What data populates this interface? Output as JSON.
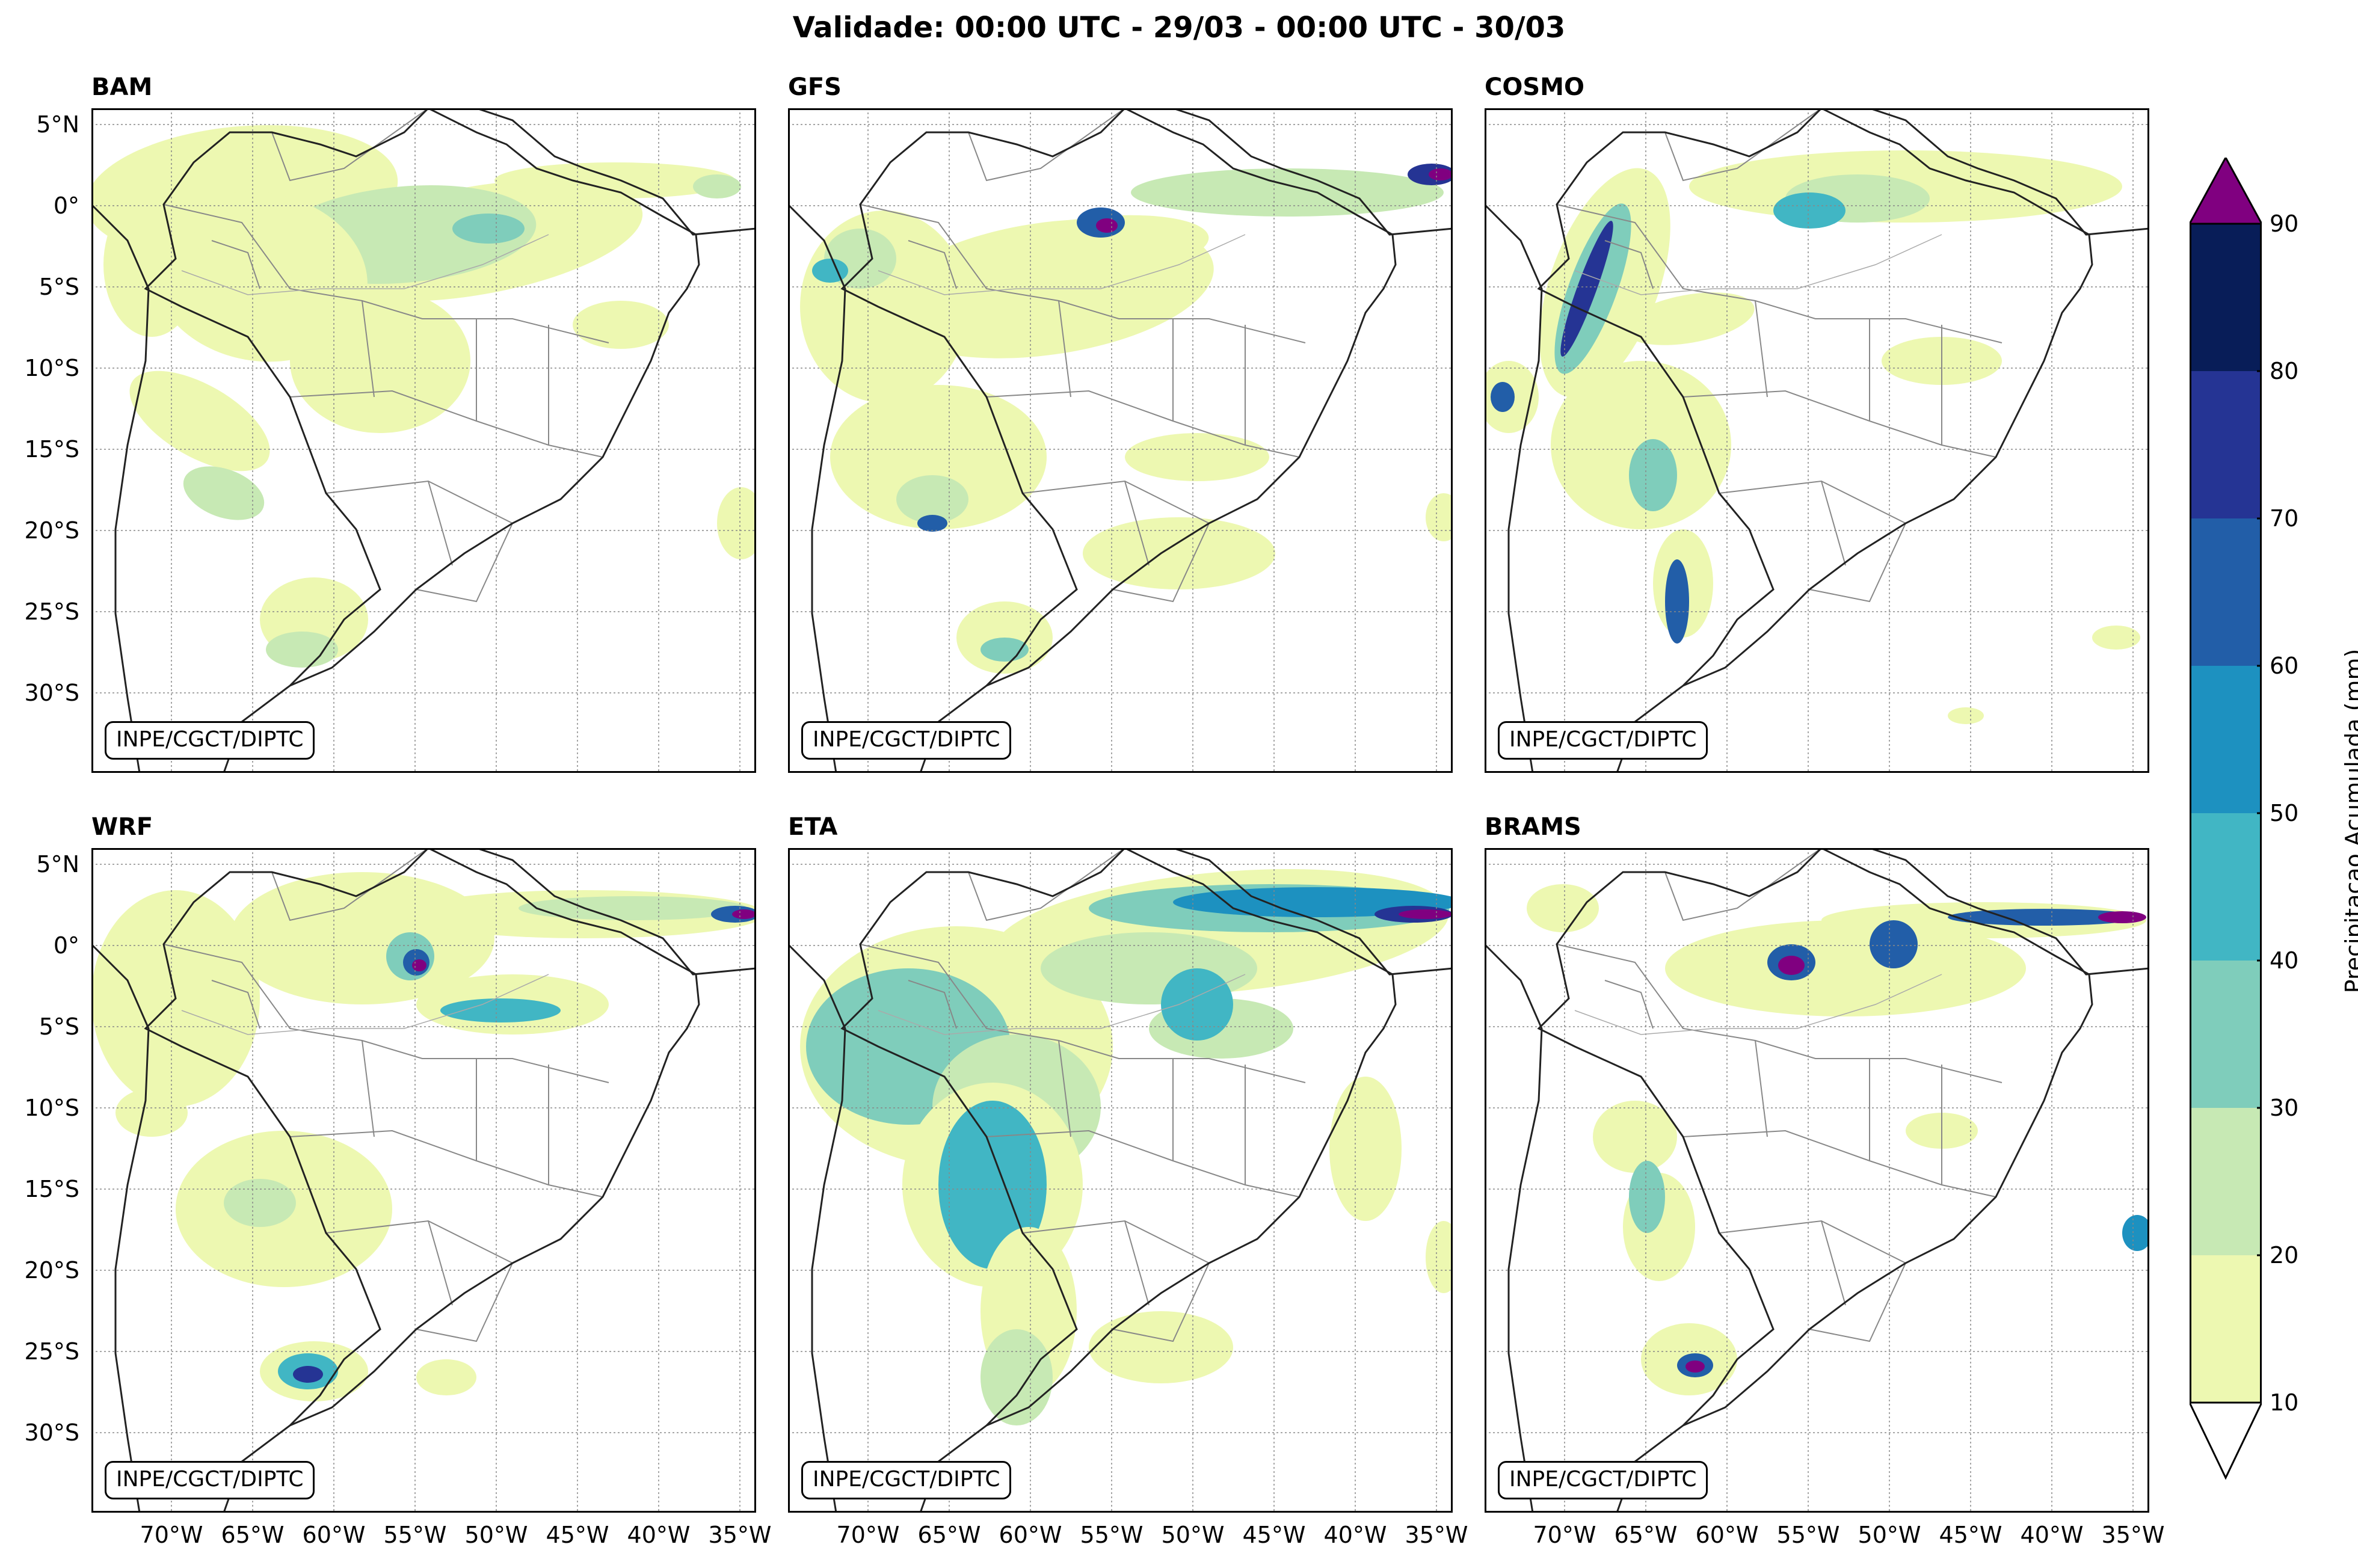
{
  "title": "Validade: 00:00 UTC - 29/03 - 00:00 UTC - 30/03",
  "credit": "INPE/CGCT/DIPTC",
  "panels": [
    {
      "name": "BAM"
    },
    {
      "name": "GFS"
    },
    {
      "name": "COSMO"
    },
    {
      "name": "WRF"
    },
    {
      "name": "ETA"
    },
    {
      "name": "BRAMS"
    }
  ],
  "lat_labels": [
    "5°N",
    "0°",
    "5°S",
    "10°S",
    "15°S",
    "20°S",
    "25°S",
    "30°S"
  ],
  "lon_labels": [
    "70°W",
    "65°W",
    "60°W",
    "55°W",
    "50°W",
    "45°W",
    "40°W",
    "35°W"
  ],
  "colorbar": {
    "label": "Precipitacao Acumulada (mm)",
    "ticks": [
      "10",
      "20",
      "30",
      "40",
      "50",
      "60",
      "70",
      "80",
      "90"
    ],
    "colors": [
      "#edf8b1",
      "#c7e9b4",
      "#7fcdbb",
      "#41b6c4",
      "#1d91c0",
      "#225ea8",
      "#253494",
      "#081d58"
    ],
    "over_color": "#800080",
    "under_color": "#ffffff"
  }
}
